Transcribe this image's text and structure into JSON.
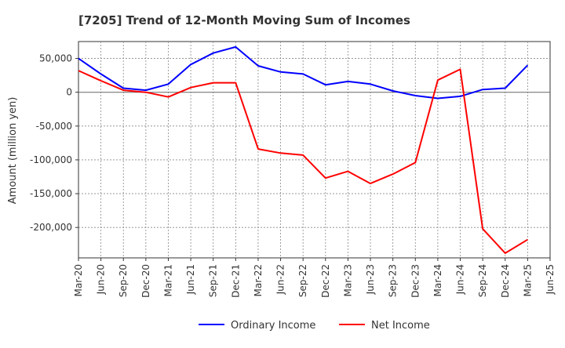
{
  "chart_data": {
    "type": "line",
    "title": "[7205]  Trend of 12-Month Moving Sum of Incomes",
    "xlabel": "",
    "ylabel": "Amount (million yen)",
    "ylim": [
      -245000,
      75000
    ],
    "yticks": [
      50000,
      0,
      -50000,
      -100000,
      -150000,
      -200000
    ],
    "ytick_labels": [
      "50,000",
      "0",
      "-50,000",
      "-100,000",
      "-150,000",
      "-200,000"
    ],
    "categories": [
      "Mar-20",
      "Jun-20",
      "Sep-20",
      "Dec-20",
      "Mar-21",
      "Jun-21",
      "Sep-21",
      "Dec-21",
      "Mar-22",
      "Jun-22",
      "Sep-22",
      "Dec-22",
      "Mar-23",
      "Jun-23",
      "Sep-23",
      "Dec-23",
      "Mar-24",
      "Jun-24",
      "Sep-24",
      "Dec-24",
      "Mar-25",
      "Jun-25"
    ],
    "grid": true,
    "legend_position": "bottom-center",
    "series": [
      {
        "name": "Ordinary Income",
        "color": "#0000ff",
        "values": [
          50000,
          27000,
          6000,
          3000,
          12000,
          41000,
          58000,
          67000,
          39000,
          30000,
          27000,
          11000,
          16000,
          12000,
          2000,
          -5000,
          -9000,
          -6000,
          4000,
          6000,
          40000,
          null
        ]
      },
      {
        "name": "Net Income",
        "color": "#ff0000",
        "values": [
          32000,
          17000,
          3000,
          0,
          -7000,
          7000,
          14000,
          14000,
          -84000,
          -90000,
          -93000,
          -127000,
          -117000,
          -135000,
          -121000,
          -104000,
          18000,
          34000,
          -202000,
          -238000,
          -218000,
          null
        ]
      }
    ]
  }
}
